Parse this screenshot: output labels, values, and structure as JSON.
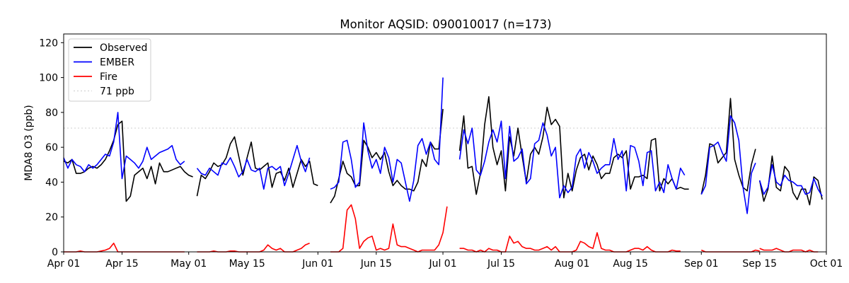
{
  "chart_data": {
    "type": "line",
    "title": "Monitor AQSID: 090010017 (n=173)",
    "xlabel": "",
    "ylabel": "MDA8 O3 (ppb)",
    "x_range": [
      "2023-04-01",
      "2023-10-01"
    ],
    "ylim": [
      0,
      125
    ],
    "x_ticks": [
      {
        "date": "2023-04-01",
        "label": "Apr 01"
      },
      {
        "date": "2023-04-15",
        "label": "Apr 15"
      },
      {
        "date": "2023-05-01",
        "label": "May 01"
      },
      {
        "date": "2023-05-15",
        "label": "May 15"
      },
      {
        "date": "2023-06-01",
        "label": "Jun 01"
      },
      {
        "date": "2023-06-15",
        "label": "Jun 15"
      },
      {
        "date": "2023-07-01",
        "label": "Jul 01"
      },
      {
        "date": "2023-07-15",
        "label": "Jul 15"
      },
      {
        "date": "2023-08-01",
        "label": "Aug 01"
      },
      {
        "date": "2023-08-15",
        "label": "Aug 15"
      },
      {
        "date": "2023-09-01",
        "label": "Sep 01"
      },
      {
        "date": "2023-09-15",
        "label": "Sep 15"
      },
      {
        "date": "2023-10-01",
        "label": "Oct 01"
      }
    ],
    "y_ticks": [
      0,
      20,
      40,
      60,
      80,
      100,
      120
    ],
    "legend_position": "top-left",
    "reference_line": {
      "name": "71 ppb",
      "value": 71,
      "color": "#d3d3d3"
    },
    "series": [
      {
        "name": "Observed",
        "color": "#000000",
        "segments": [
          {
            "start": "2023-04-01",
            "values": [
              52,
              51,
              53,
              45,
              45,
              46,
              48,
              49,
              48,
              50,
              53,
              58,
              64,
              73,
              75,
              29,
              32,
              44,
              46,
              48,
              42,
              49,
              39,
              51,
              46,
              46,
              47,
              48,
              49,
              46,
              44,
              43
            ]
          },
          {
            "start": "2023-05-03",
            "values": [
              32,
              44,
              42,
              46,
              51,
              49,
              50,
              54,
              62,
              66,
              55,
              44,
              54,
              63,
              48,
              47,
              49,
              51,
              37,
              45,
              46,
              41,
              48,
              37,
              45,
              53,
              49,
              52,
              39,
              38
            ]
          },
          {
            "start": "2023-06-04",
            "values": [
              28,
              32,
              42,
              52,
              45,
              43,
              38,
              38,
              64,
              60,
              54,
              57,
              53,
              57,
              46,
              38,
              41,
              38,
              36,
              36,
              35,
              40,
              53,
              49,
              63,
              59,
              59,
              82
            ]
          }
        ]
      },
      {
        "name": "EMBER",
        "color": "#0000ff",
        "segments": [
          {
            "start": "2023-04-01",
            "values": [
              54,
              48,
              53,
              50,
              49,
              46,
              50,
              48,
              50,
              53,
              56,
              55,
              63,
              80,
              42,
              55,
              53,
              51,
              48,
              52,
              60,
              53,
              55,
              57,
              58,
              59,
              61,
              53,
              50,
              52
            ]
          },
          {
            "start": "2023-05-03",
            "values": [
              48,
              45,
              44,
              48,
              46,
              44,
              51,
              50,
              54,
              49,
              43,
              46,
              53,
              47,
              46,
              48,
              36,
              48,
              49,
              47,
              49,
              38,
              45,
              53,
              61,
              52,
              46,
              54
            ]
          },
          {
            "start": "2023-06-04",
            "values": [
              36,
              37,
              40,
              63,
              64,
              53,
              37,
              40,
              74,
              58,
              48,
              53,
              45,
              60,
              54,
              40,
              53,
              51,
              40,
              29,
              41,
              61,
              65,
              56,
              63,
              53,
              50,
              100
            ]
          },
          {
            "start": "2023-07-05",
            "values": [
              53,
              70,
              62,
              71,
              47,
              44,
              52,
              63,
              70,
              63,
              75,
              42,
              72,
              52,
              54,
              59,
              39,
              42,
              62,
              64,
              74,
              67,
              55,
              60,
              31,
              38,
              34,
              37,
              55,
              59,
              48,
              57,
              52,
              45,
              48,
              50,
              50,
              65,
              53,
              58,
              35,
              61,
              60,
              52,
              38,
              57,
              58,
              35,
              40,
              34,
              50,
              42,
              36,
              48,
              44
            ]
          },
          {
            "start": "2023-09-01",
            "values": [
              33,
              38,
              60,
              61,
              63,
              57,
              52,
              78,
              74,
              64,
              37,
              22,
              45,
              51
            ]
          },
          {
            "start": "2023-09-15",
            "values": [
              41,
              33,
              37,
              50,
              40,
              38,
              44,
              41,
              40,
              38,
              38,
              33,
              34,
              42,
              36,
              32
            ]
          }
        ]
      },
      {
        "name": "Fire",
        "color": "#ff0000",
        "segments": [
          {
            "start": "2023-04-01",
            "values": [
              0,
              0,
              0,
              0,
              0.5,
              0,
              0,
              0,
              0,
              0.5,
              1,
              2,
              5,
              0,
              0,
              0,
              0,
              0,
              0,
              0,
              0,
              0,
              0,
              0,
              0,
              0,
              0,
              0,
              0,
              0
            ]
          },
          {
            "start": "2023-05-03",
            "values": [
              0,
              0,
              0,
              0,
              0.5,
              0,
              0,
              0,
              0.5,
              0.5,
              0,
              0,
              0,
              0,
              0,
              0,
              1,
              4,
              2,
              1,
              2,
              0,
              0,
              0,
              1,
              2,
              4,
              5
            ]
          },
          {
            "start": "2023-06-04",
            "values": [
              0,
              0,
              0,
              2,
              24,
              27,
              19,
              2,
              6,
              8,
              9,
              1,
              2,
              1,
              2,
              16,
              4,
              3,
              3,
              2,
              1,
              0,
              1,
              1,
              1,
              1,
              4,
              11,
              26
            ]
          },
          {
            "start": "2023-07-05",
            "values": [
              2,
              2,
              1,
              1,
              0,
              1,
              0,
              2,
              1,
              1,
              0,
              0,
              9,
              5,
              6,
              3,
              2,
              2,
              1,
              1,
              2,
              3,
              1,
              3,
              0,
              0,
              0,
              0,
              1,
              6,
              5,
              3,
              2,
              11,
              2,
              1,
              1,
              0,
              0,
              0,
              0,
              1,
              2,
              2,
              1,
              3,
              1,
              0,
              0,
              0,
              0,
              1,
              0.5,
              0.5
            ]
          },
          {
            "start": "2023-09-01",
            "values": [
              1,
              0,
              0,
              0,
              0,
              0,
              0,
              0,
              0,
              0,
              0,
              0,
              0,
              1,
              0.5
            ]
          },
          {
            "start": "2023-09-15",
            "values": [
              2,
              1,
              1,
              1,
              2,
              1,
              0,
              0,
              1,
              1,
              1,
              0,
              1,
              0,
              0
            ]
          }
        ]
      }
    ],
    "observed_extra": [
      {
        "start": "2023-07-05",
        "values": [
          58,
          78,
          48,
          49,
          33,
          45,
          73,
          89,
          60,
          50,
          58,
          35,
          66,
          55,
          71,
          55,
          40,
          56,
          60,
          56,
          66,
          83,
          73,
          76,
          72,
          31,
          45,
          35,
          47,
          54,
          56,
          47,
          55,
          50,
          42,
          45,
          45,
          54,
          56,
          54,
          58,
          36,
          43,
          43,
          44,
          42,
          64,
          65,
          35,
          42,
          39,
          42,
          36,
          37,
          36,
          36
        ]
      },
      {
        "start": "2023-09-01",
        "values": [
          33,
          44,
          62,
          61,
          51,
          54,
          57,
          88,
          53,
          44,
          37,
          35,
          50,
          59
        ]
      },
      {
        "start": "2023-09-15",
        "values": [
          41,
          29,
          36,
          55,
          37,
          35,
          49,
          46,
          34,
          30,
          36,
          36,
          27,
          43,
          41,
          30
        ]
      }
    ]
  }
}
